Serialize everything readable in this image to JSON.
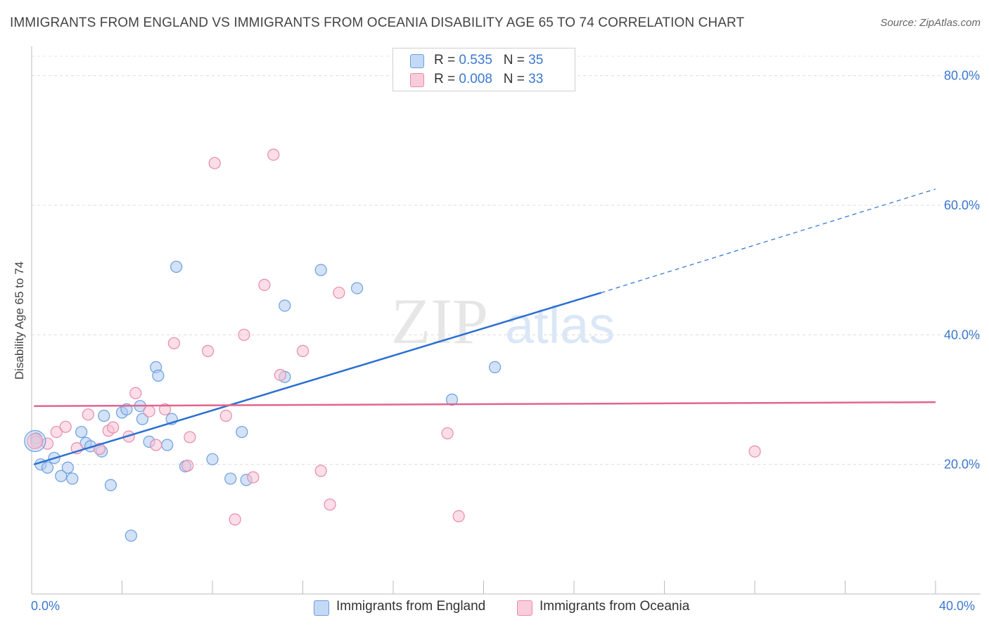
{
  "header": {
    "title": "IMMIGRANTS FROM ENGLAND VS IMMIGRANTS FROM OCEANIA DISABILITY AGE 65 TO 74 CORRELATION CHART",
    "source": "Source: ZipAtlas.com"
  },
  "watermark": "ZIPatlas",
  "legend_top": {
    "rows": [
      {
        "r_label": "R =",
        "r_value": "0.535",
        "n_label": "N =",
        "n_value": "35"
      },
      {
        "r_label": "R =",
        "r_value": "0.008",
        "n_label": "N =",
        "n_value": "33"
      }
    ]
  },
  "bottom_legend": {
    "england": "Immigrants from England",
    "oceania": "Immigrants from Oceania"
  },
  "colors": {
    "england_fill": "#aecbf1",
    "england_stroke": "#6a9fe0",
    "england_line": "#2b6fd1",
    "oceania_fill": "#f8c3d4",
    "oceania_stroke": "#e98aab",
    "oceania_line": "#e2648f",
    "axis_text": "#3b78d0"
  },
  "chart_data": {
    "type": "scatter",
    "title": "IMMIGRANTS FROM ENGLAND VS IMMIGRANTS FROM OCEANIA DISABILITY AGE 65 TO 74 CORRELATION CHART",
    "xlabel": "",
    "ylabel": "Disability Age 65 to 74",
    "xlim": [
      0,
      40
    ],
    "ylim": [
      0,
      83
    ],
    "x_tick_labels": [
      "0.0%",
      "40.0%"
    ],
    "y_ticks": [
      20,
      40,
      60,
      80
    ],
    "y_tick_labels": [
      "20.0%",
      "40.0%",
      "60.0%",
      "80.0%"
    ],
    "grid": true,
    "legend_position": "top-center",
    "series": [
      {
        "name": "Immigrants from England",
        "points": [
          [
            0.2,
            24.0
          ],
          [
            0.4,
            20.0
          ],
          [
            0.7,
            19.5
          ],
          [
            1.0,
            21.0
          ],
          [
            1.3,
            18.2
          ],
          [
            1.6,
            19.5
          ],
          [
            1.8,
            17.8
          ],
          [
            2.2,
            25.0
          ],
          [
            2.4,
            23.3
          ],
          [
            2.6,
            22.8
          ],
          [
            3.1,
            22.0
          ],
          [
            3.2,
            27.5
          ],
          [
            3.5,
            16.8
          ],
          [
            4.0,
            28.0
          ],
          [
            4.2,
            28.5
          ],
          [
            4.4,
            9.0
          ],
          [
            4.8,
            29.0
          ],
          [
            4.9,
            27.0
          ],
          [
            5.2,
            23.5
          ],
          [
            5.5,
            35.0
          ],
          [
            5.6,
            33.7
          ],
          [
            6.0,
            23.0
          ],
          [
            6.2,
            27.0
          ],
          [
            6.4,
            50.5
          ],
          [
            6.8,
            19.7
          ],
          [
            8.0,
            20.8
          ],
          [
            8.8,
            17.8
          ],
          [
            9.3,
            25.0
          ],
          [
            9.5,
            17.6
          ],
          [
            11.2,
            33.5
          ],
          [
            11.2,
            44.5
          ],
          [
            12.8,
            50.0
          ],
          [
            14.4,
            47.2
          ],
          [
            18.6,
            30.0
          ],
          [
            20.5,
            35.0
          ]
        ],
        "trend": {
          "x": [
            0.1,
            25.2
          ],
          "y": [
            20.0,
            46.5
          ],
          "dashed_extension_to": [
            40.0,
            62.5
          ]
        }
      },
      {
        "name": "Immigrants from Oceania",
        "points": [
          [
            0.2,
            23.5
          ],
          [
            0.7,
            23.2
          ],
          [
            1.1,
            25.0
          ],
          [
            1.5,
            25.8
          ],
          [
            2.0,
            22.5
          ],
          [
            2.5,
            27.7
          ],
          [
            3.0,
            22.4
          ],
          [
            3.4,
            25.2
          ],
          [
            3.6,
            25.7
          ],
          [
            4.3,
            24.3
          ],
          [
            4.6,
            31.0
          ],
          [
            5.2,
            28.2
          ],
          [
            5.5,
            23.0
          ],
          [
            5.9,
            28.5
          ],
          [
            6.3,
            38.7
          ],
          [
            6.9,
            19.8
          ],
          [
            7.0,
            24.2
          ],
          [
            7.8,
            37.5
          ],
          [
            8.1,
            66.5
          ],
          [
            8.6,
            27.5
          ],
          [
            9.0,
            11.5
          ],
          [
            9.4,
            40.0
          ],
          [
            9.8,
            18.0
          ],
          [
            10.3,
            47.7
          ],
          [
            10.7,
            67.8
          ],
          [
            11.0,
            33.8
          ],
          [
            12.0,
            37.5
          ],
          [
            12.8,
            19.0
          ],
          [
            13.2,
            13.8
          ],
          [
            13.6,
            46.5
          ],
          [
            18.4,
            24.8
          ],
          [
            18.9,
            12.0
          ],
          [
            32.0,
            22.0
          ]
        ],
        "trend": {
          "x": [
            0.1,
            40.0
          ],
          "y": [
            29.0,
            29.6
          ]
        }
      }
    ]
  }
}
